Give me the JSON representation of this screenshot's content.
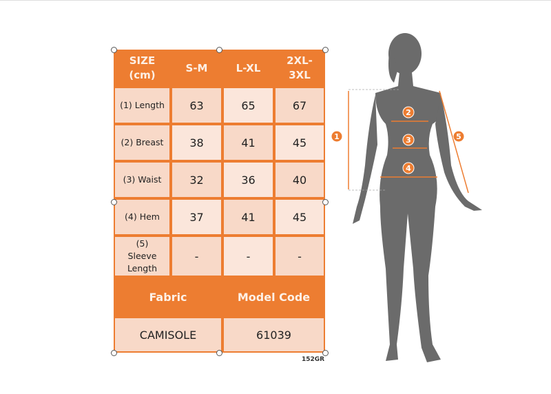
{
  "table": {
    "header": [
      "SIZE (cm)",
      "S-M",
      "L-XL",
      "2XL-3XL"
    ],
    "rows": [
      {
        "label": "(1) Length",
        "values": [
          "63",
          "65",
          "67"
        ]
      },
      {
        "label": "(2) Breast",
        "values": [
          "38",
          "41",
          "45"
        ]
      },
      {
        "label": "(3) Waist",
        "values": [
          "32",
          "36",
          "40"
        ]
      },
      {
        "label": "(4) Hem",
        "values": [
          "37",
          "41",
          "45"
        ]
      },
      {
        "label": "(5) Sleeve Length",
        "values": [
          "-",
          "-",
          "-"
        ]
      }
    ],
    "footer_header": [
      "Fabric",
      "Model Code"
    ],
    "footer_values": [
      "CAMISOLE",
      "61039"
    ]
  },
  "product_code": "152GR",
  "figure": {
    "markers": [
      "1",
      "2",
      "3",
      "4",
      "5"
    ]
  },
  "colors": {
    "accent": "#ED7D31",
    "cell": "#F8D9C8",
    "cell_light": "#FBE6DB",
    "silhouette": "#6b6b6b"
  }
}
